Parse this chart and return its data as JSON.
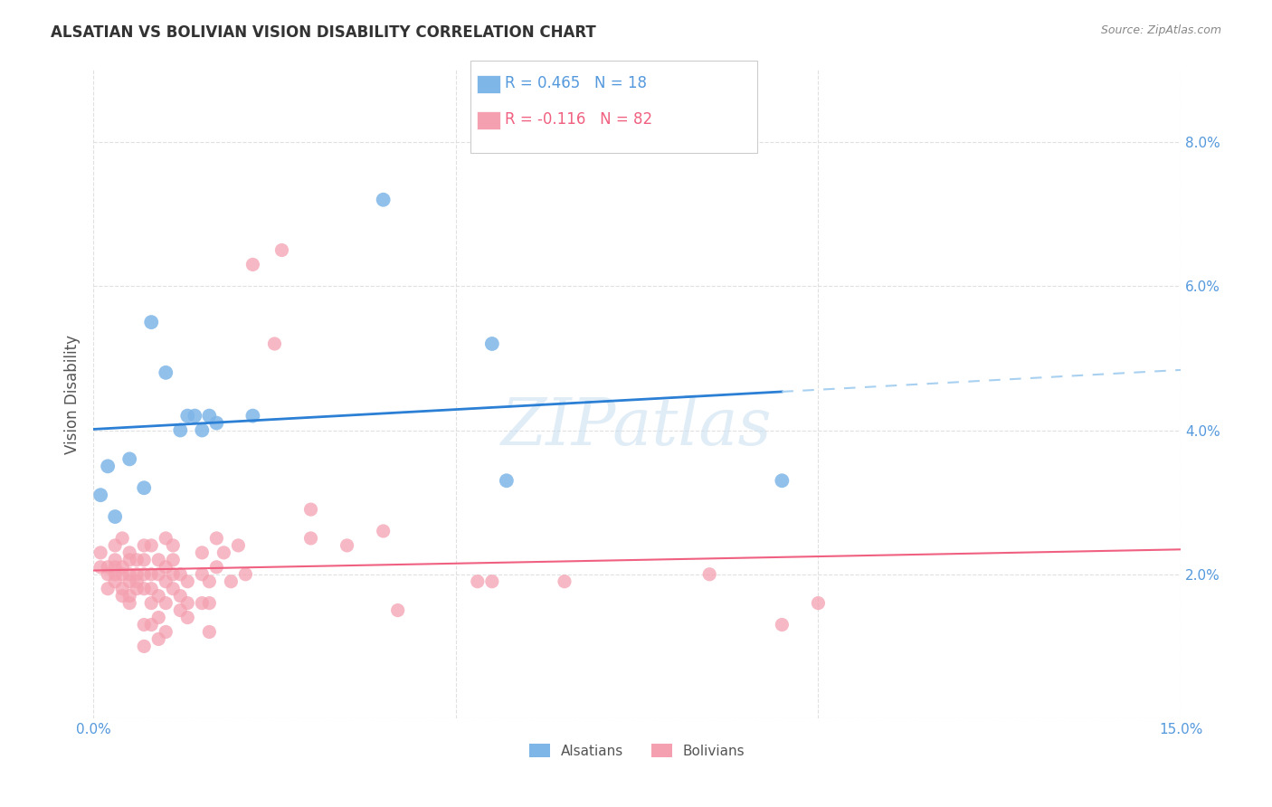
{
  "title": "ALSATIAN VS BOLIVIAN VISION DISABILITY CORRELATION CHART",
  "source": "Source: ZipAtlas.com",
  "ylabel": "Vision Disability",
  "xmin": 0.0,
  "xmax": 0.15,
  "ymin": 0.0,
  "ymax": 0.09,
  "yticks": [
    0.0,
    0.02,
    0.04,
    0.06,
    0.08
  ],
  "ytick_labels": [
    "",
    "2.0%",
    "4.0%",
    "6.0%",
    "8.0%"
  ],
  "xticks": [
    0.0,
    0.05,
    0.1,
    0.15
  ],
  "xtick_labels": [
    "0.0%",
    "",
    "",
    "15.0%"
  ],
  "alsatian_R": 0.465,
  "alsatian_N": 18,
  "bolivian_R": -0.116,
  "bolivian_N": 82,
  "alsatian_color": "#7EB6E8",
  "bolivian_color": "#F4A0B0",
  "alsatian_line_color": "#2B7FD4",
  "bolivian_line_color": "#F06080",
  "trendline_extension_color": "#A8D0F0",
  "alsatian_points": [
    [
      0.001,
      0.031
    ],
    [
      0.002,
      0.035
    ],
    [
      0.003,
      0.028
    ],
    [
      0.005,
      0.036
    ],
    [
      0.007,
      0.032
    ],
    [
      0.008,
      0.055
    ],
    [
      0.01,
      0.048
    ],
    [
      0.012,
      0.04
    ],
    [
      0.013,
      0.042
    ],
    [
      0.014,
      0.042
    ],
    [
      0.015,
      0.04
    ],
    [
      0.016,
      0.042
    ],
    [
      0.017,
      0.041
    ],
    [
      0.022,
      0.042
    ],
    [
      0.04,
      0.072
    ],
    [
      0.055,
      0.052
    ],
    [
      0.057,
      0.033
    ],
    [
      0.095,
      0.033
    ]
  ],
  "bolivian_points": [
    [
      0.001,
      0.021
    ],
    [
      0.001,
      0.023
    ],
    [
      0.002,
      0.02
    ],
    [
      0.002,
      0.021
    ],
    [
      0.002,
      0.018
    ],
    [
      0.003,
      0.02
    ],
    [
      0.003,
      0.024
    ],
    [
      0.003,
      0.022
    ],
    [
      0.003,
      0.021
    ],
    [
      0.003,
      0.019
    ],
    [
      0.004,
      0.025
    ],
    [
      0.004,
      0.021
    ],
    [
      0.004,
      0.02
    ],
    [
      0.004,
      0.018
    ],
    [
      0.004,
      0.017
    ],
    [
      0.005,
      0.023
    ],
    [
      0.005,
      0.022
    ],
    [
      0.005,
      0.02
    ],
    [
      0.005,
      0.019
    ],
    [
      0.005,
      0.017
    ],
    [
      0.005,
      0.016
    ],
    [
      0.006,
      0.022
    ],
    [
      0.006,
      0.02
    ],
    [
      0.006,
      0.019
    ],
    [
      0.006,
      0.018
    ],
    [
      0.007,
      0.024
    ],
    [
      0.007,
      0.022
    ],
    [
      0.007,
      0.02
    ],
    [
      0.007,
      0.018
    ],
    [
      0.007,
      0.013
    ],
    [
      0.007,
      0.01
    ],
    [
      0.008,
      0.024
    ],
    [
      0.008,
      0.02
    ],
    [
      0.008,
      0.018
    ],
    [
      0.008,
      0.016
    ],
    [
      0.008,
      0.013
    ],
    [
      0.009,
      0.022
    ],
    [
      0.009,
      0.02
    ],
    [
      0.009,
      0.017
    ],
    [
      0.009,
      0.014
    ],
    [
      0.009,
      0.011
    ],
    [
      0.01,
      0.025
    ],
    [
      0.01,
      0.021
    ],
    [
      0.01,
      0.019
    ],
    [
      0.01,
      0.016
    ],
    [
      0.01,
      0.012
    ],
    [
      0.011,
      0.024
    ],
    [
      0.011,
      0.022
    ],
    [
      0.011,
      0.02
    ],
    [
      0.011,
      0.018
    ],
    [
      0.012,
      0.02
    ],
    [
      0.012,
      0.017
    ],
    [
      0.012,
      0.015
    ],
    [
      0.013,
      0.019
    ],
    [
      0.013,
      0.016
    ],
    [
      0.013,
      0.014
    ],
    [
      0.015,
      0.023
    ],
    [
      0.015,
      0.02
    ],
    [
      0.015,
      0.016
    ],
    [
      0.016,
      0.019
    ],
    [
      0.016,
      0.016
    ],
    [
      0.016,
      0.012
    ],
    [
      0.017,
      0.025
    ],
    [
      0.017,
      0.021
    ],
    [
      0.018,
      0.023
    ],
    [
      0.019,
      0.019
    ],
    [
      0.02,
      0.024
    ],
    [
      0.021,
      0.02
    ],
    [
      0.022,
      0.063
    ],
    [
      0.025,
      0.052
    ],
    [
      0.026,
      0.065
    ],
    [
      0.03,
      0.025
    ],
    [
      0.03,
      0.029
    ],
    [
      0.035,
      0.024
    ],
    [
      0.04,
      0.026
    ],
    [
      0.042,
      0.015
    ],
    [
      0.053,
      0.019
    ],
    [
      0.055,
      0.019
    ],
    [
      0.065,
      0.019
    ],
    [
      0.085,
      0.02
    ],
    [
      0.095,
      0.013
    ],
    [
      0.1,
      0.016
    ]
  ],
  "watermark": "ZIPatlas",
  "background_color": "#ffffff",
  "grid_color": "#dddddd"
}
